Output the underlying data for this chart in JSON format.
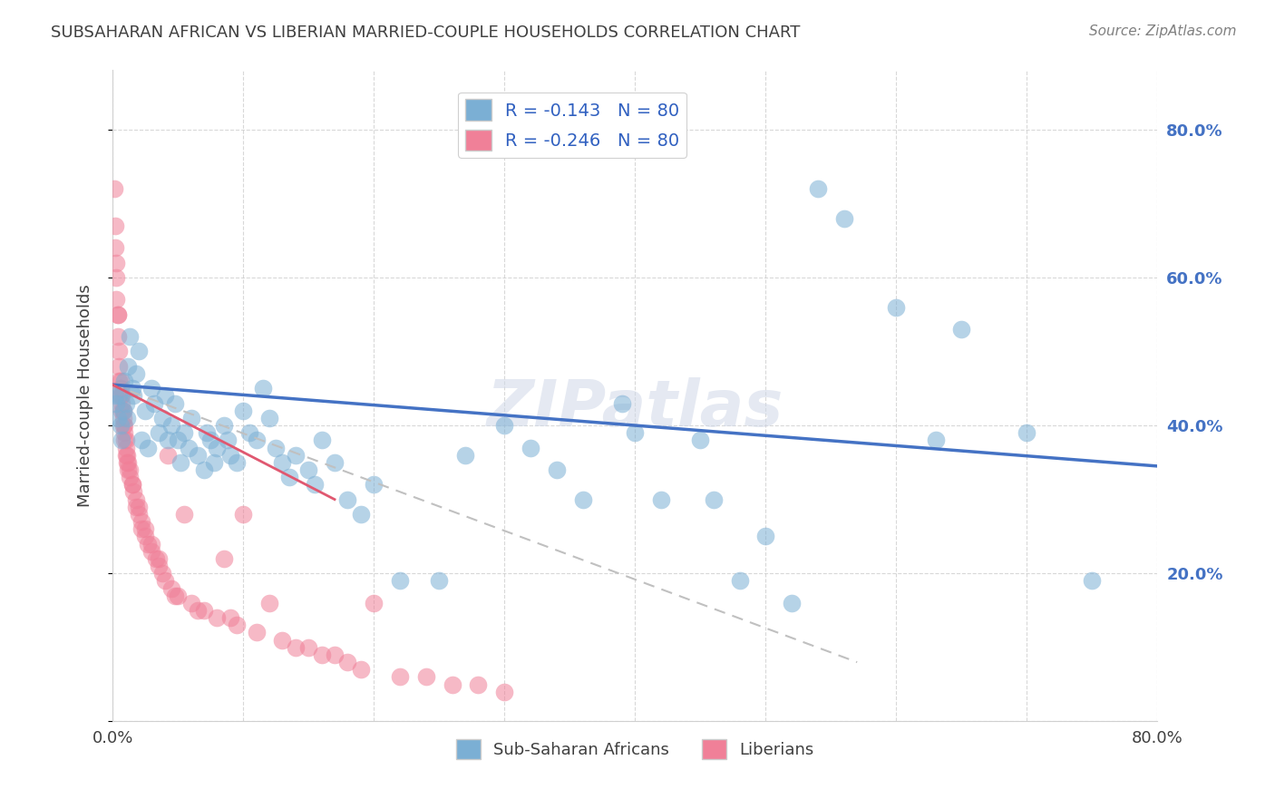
{
  "title": "SUBSAHARAN AFRICAN VS LIBERIAN MARRIED-COUPLE HOUSEHOLDS CORRELATION CHART",
  "source": "Source: ZipAtlas.com",
  "ylabel": "Married-couple Households",
  "xlim": [
    0.0,
    0.8
  ],
  "ylim": [
    0.0,
    0.88
  ],
  "yticks": [
    0.0,
    0.2,
    0.4,
    0.6,
    0.8
  ],
  "ytick_labels": [
    "",
    "20.0%",
    "40.0%",
    "60.0%",
    "80.0%"
  ],
  "xticks": [
    0.0,
    0.1,
    0.2,
    0.3,
    0.4,
    0.5,
    0.6,
    0.7,
    0.8
  ],
  "legend_entries": [
    {
      "label": "R = -0.143   N = 80",
      "color": "#a8c4e0"
    },
    {
      "label": "R = -0.246   N = 80",
      "color": "#f4a0b0"
    }
  ],
  "legend_label_color": "#3060c0",
  "watermark": "ZIPatlas",
  "blue_color": "#7bafd4",
  "pink_color": "#f08098",
  "blue_line_color": "#4472c4",
  "pink_line_color": "#e05870",
  "pink_dashed_line_color": "#c0c0c0",
  "background_color": "#ffffff",
  "grid_color": "#c8c8c8",
  "title_color": "#404040",
  "right_axis_color": "#4472c4",
  "blue_scatter": [
    [
      0.002,
      0.44
    ],
    [
      0.003,
      0.43
    ],
    [
      0.004,
      0.41
    ],
    [
      0.005,
      0.44
    ],
    [
      0.006,
      0.4
    ],
    [
      0.007,
      0.38
    ],
    [
      0.008,
      0.42
    ],
    [
      0.009,
      0.46
    ],
    [
      0.01,
      0.43
    ],
    [
      0.011,
      0.41
    ],
    [
      0.012,
      0.48
    ],
    [
      0.013,
      0.52
    ],
    [
      0.015,
      0.45
    ],
    [
      0.016,
      0.44
    ],
    [
      0.018,
      0.47
    ],
    [
      0.02,
      0.5
    ],
    [
      0.022,
      0.38
    ],
    [
      0.025,
      0.42
    ],
    [
      0.027,
      0.37
    ],
    [
      0.03,
      0.45
    ],
    [
      0.032,
      0.43
    ],
    [
      0.035,
      0.39
    ],
    [
      0.038,
      0.41
    ],
    [
      0.04,
      0.44
    ],
    [
      0.042,
      0.38
    ],
    [
      0.045,
      0.4
    ],
    [
      0.048,
      0.43
    ],
    [
      0.05,
      0.38
    ],
    [
      0.052,
      0.35
    ],
    [
      0.055,
      0.39
    ],
    [
      0.058,
      0.37
    ],
    [
      0.06,
      0.41
    ],
    [
      0.065,
      0.36
    ],
    [
      0.07,
      0.34
    ],
    [
      0.072,
      0.39
    ],
    [
      0.075,
      0.38
    ],
    [
      0.078,
      0.35
    ],
    [
      0.08,
      0.37
    ],
    [
      0.085,
      0.4
    ],
    [
      0.088,
      0.38
    ],
    [
      0.09,
      0.36
    ],
    [
      0.095,
      0.35
    ],
    [
      0.1,
      0.42
    ],
    [
      0.105,
      0.39
    ],
    [
      0.11,
      0.38
    ],
    [
      0.115,
      0.45
    ],
    [
      0.12,
      0.41
    ],
    [
      0.125,
      0.37
    ],
    [
      0.13,
      0.35
    ],
    [
      0.135,
      0.33
    ],
    [
      0.14,
      0.36
    ],
    [
      0.15,
      0.34
    ],
    [
      0.155,
      0.32
    ],
    [
      0.16,
      0.38
    ],
    [
      0.17,
      0.35
    ],
    [
      0.18,
      0.3
    ],
    [
      0.19,
      0.28
    ],
    [
      0.2,
      0.32
    ],
    [
      0.22,
      0.19
    ],
    [
      0.25,
      0.19
    ],
    [
      0.27,
      0.36
    ],
    [
      0.3,
      0.4
    ],
    [
      0.32,
      0.37
    ],
    [
      0.34,
      0.34
    ],
    [
      0.36,
      0.3
    ],
    [
      0.39,
      0.43
    ],
    [
      0.4,
      0.39
    ],
    [
      0.42,
      0.3
    ],
    [
      0.45,
      0.38
    ],
    [
      0.46,
      0.3
    ],
    [
      0.48,
      0.19
    ],
    [
      0.5,
      0.25
    ],
    [
      0.52,
      0.16
    ],
    [
      0.54,
      0.72
    ],
    [
      0.56,
      0.68
    ],
    [
      0.6,
      0.56
    ],
    [
      0.63,
      0.38
    ],
    [
      0.65,
      0.53
    ],
    [
      0.7,
      0.39
    ],
    [
      0.75,
      0.19
    ]
  ],
  "pink_scatter": [
    [
      0.001,
      0.72
    ],
    [
      0.002,
      0.67
    ],
    [
      0.002,
      0.64
    ],
    [
      0.003,
      0.62
    ],
    [
      0.003,
      0.6
    ],
    [
      0.003,
      0.57
    ],
    [
      0.004,
      0.55
    ],
    [
      0.004,
      0.55
    ],
    [
      0.004,
      0.52
    ],
    [
      0.005,
      0.5
    ],
    [
      0.005,
      0.48
    ],
    [
      0.005,
      0.46
    ],
    [
      0.006,
      0.46
    ],
    [
      0.006,
      0.45
    ],
    [
      0.006,
      0.44
    ],
    [
      0.007,
      0.44
    ],
    [
      0.007,
      0.43
    ],
    [
      0.007,
      0.42
    ],
    [
      0.008,
      0.42
    ],
    [
      0.008,
      0.41
    ],
    [
      0.008,
      0.4
    ],
    [
      0.009,
      0.4
    ],
    [
      0.009,
      0.39
    ],
    [
      0.009,
      0.38
    ],
    [
      0.01,
      0.38
    ],
    [
      0.01,
      0.37
    ],
    [
      0.01,
      0.36
    ],
    [
      0.011,
      0.36
    ],
    [
      0.011,
      0.35
    ],
    [
      0.012,
      0.35
    ],
    [
      0.012,
      0.34
    ],
    [
      0.013,
      0.34
    ],
    [
      0.013,
      0.33
    ],
    [
      0.015,
      0.32
    ],
    [
      0.015,
      0.32
    ],
    [
      0.016,
      0.31
    ],
    [
      0.018,
      0.3
    ],
    [
      0.018,
      0.29
    ],
    [
      0.02,
      0.29
    ],
    [
      0.02,
      0.28
    ],
    [
      0.022,
      0.27
    ],
    [
      0.022,
      0.26
    ],
    [
      0.025,
      0.26
    ],
    [
      0.025,
      0.25
    ],
    [
      0.027,
      0.24
    ],
    [
      0.03,
      0.24
    ],
    [
      0.03,
      0.23
    ],
    [
      0.033,
      0.22
    ],
    [
      0.035,
      0.22
    ],
    [
      0.035,
      0.21
    ],
    [
      0.038,
      0.2
    ],
    [
      0.04,
      0.19
    ],
    [
      0.042,
      0.36
    ],
    [
      0.045,
      0.18
    ],
    [
      0.048,
      0.17
    ],
    [
      0.05,
      0.17
    ],
    [
      0.055,
      0.28
    ],
    [
      0.06,
      0.16
    ],
    [
      0.065,
      0.15
    ],
    [
      0.07,
      0.15
    ],
    [
      0.08,
      0.14
    ],
    [
      0.085,
      0.22
    ],
    [
      0.09,
      0.14
    ],
    [
      0.095,
      0.13
    ],
    [
      0.1,
      0.28
    ],
    [
      0.11,
      0.12
    ],
    [
      0.12,
      0.16
    ],
    [
      0.13,
      0.11
    ],
    [
      0.14,
      0.1
    ],
    [
      0.15,
      0.1
    ],
    [
      0.16,
      0.09
    ],
    [
      0.17,
      0.09
    ],
    [
      0.18,
      0.08
    ],
    [
      0.19,
      0.07
    ],
    [
      0.2,
      0.16
    ],
    [
      0.22,
      0.06
    ],
    [
      0.24,
      0.06
    ],
    [
      0.26,
      0.05
    ],
    [
      0.28,
      0.05
    ],
    [
      0.3,
      0.04
    ]
  ],
  "blue_line_x": [
    0.0,
    0.8
  ],
  "blue_line_y_start": 0.455,
  "blue_line_y_end": 0.345,
  "pink_line_x": [
    0.0,
    0.17
  ],
  "pink_line_y_start": 0.455,
  "pink_line_y_end": 0.3,
  "pink_dashed_line_x": [
    0.0,
    0.57
  ],
  "pink_dashed_line_y_start": 0.455,
  "pink_dashed_line_y_end": 0.08
}
